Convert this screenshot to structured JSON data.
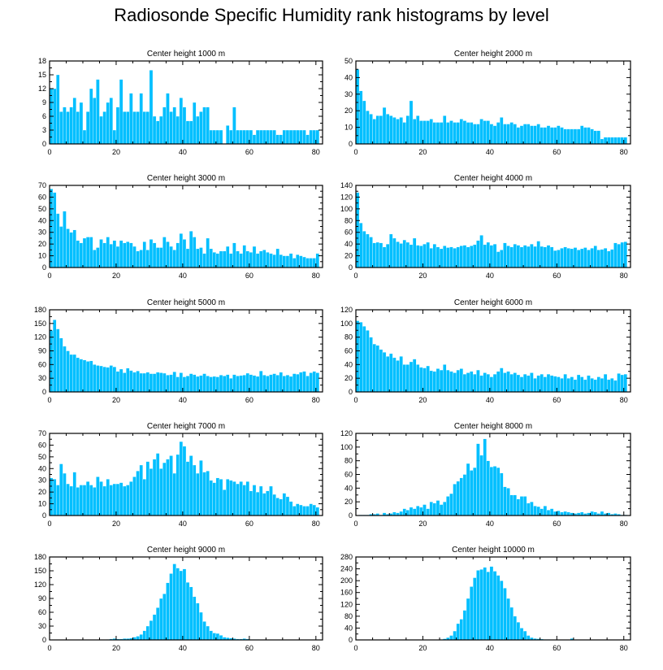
{
  "title": "Radiosonde Specific Humidity rank histograms by level",
  "colors": {
    "bar": "#00bfff",
    "bar_edge": "#ffffff",
    "axis": "#000000"
  },
  "chart_data": [
    {
      "type": "bar",
      "title": "Center height 1000 m",
      "xlim": [
        0,
        82
      ],
      "ylim": [
        0,
        18
      ],
      "yticks": [
        0,
        3,
        6,
        9,
        12,
        15,
        18
      ],
      "xticks": [
        0,
        20,
        40,
        60,
        80
      ],
      "values": [
        12,
        12,
        15,
        7,
        8,
        7,
        8,
        10,
        7,
        9,
        3,
        7,
        12,
        10,
        14,
        6,
        7,
        9,
        10,
        3,
        8,
        14,
        7,
        7,
        11,
        7,
        7,
        11,
        7,
        7,
        16,
        6,
        5,
        6,
        8,
        11,
        7,
        8,
        6,
        10,
        8,
        5,
        5,
        9,
        6,
        7,
        8,
        8,
        3,
        3,
        3,
        3,
        0,
        4,
        3,
        8,
        3,
        3,
        3,
        3,
        3,
        2,
        3,
        3,
        3,
        3,
        3,
        3,
        2,
        2,
        3,
        3,
        3,
        3,
        3,
        3,
        3,
        2,
        3,
        3,
        3
      ]
    },
    {
      "type": "bar",
      "title": "Center height 2000 m",
      "xlim": [
        0,
        82
      ],
      "ylim": [
        0,
        50
      ],
      "yticks": [
        0,
        10,
        20,
        30,
        40,
        50
      ],
      "xticks": [
        0,
        20,
        40,
        60,
        80
      ],
      "values": [
        45,
        32,
        26,
        20,
        18,
        15,
        17,
        17,
        22,
        18,
        17,
        16,
        15,
        16,
        13,
        17,
        26,
        15,
        17,
        14,
        14,
        14,
        15,
        13,
        13,
        13,
        17,
        13,
        14,
        13,
        13,
        15,
        14,
        13,
        13,
        12,
        12,
        15,
        14,
        14,
        12,
        11,
        13,
        16,
        12,
        12,
        13,
        12,
        10,
        11,
        12,
        12,
        11,
        11,
        12,
        10,
        10,
        11,
        10,
        10,
        11,
        10,
        9,
        9,
        9,
        9,
        9,
        11,
        10,
        10,
        9,
        8,
        8,
        3,
        4,
        4,
        4,
        4,
        4,
        4,
        4
      ]
    },
    {
      "type": "bar",
      "title": "Center height 3000 m",
      "xlim": [
        0,
        82
      ],
      "ylim": [
        0,
        70
      ],
      "yticks": [
        0,
        10,
        20,
        30,
        40,
        50,
        60,
        70
      ],
      "xticks": [
        0,
        20,
        40,
        60,
        80
      ],
      "values": [
        67,
        64,
        46,
        35,
        48,
        33,
        30,
        32,
        23,
        21,
        25,
        26,
        26,
        15,
        17,
        24,
        21,
        26,
        20,
        23,
        18,
        23,
        21,
        22,
        21,
        18,
        14,
        15,
        22,
        15,
        24,
        21,
        17,
        17,
        26,
        22,
        18,
        15,
        21,
        29,
        24,
        16,
        31,
        26,
        16,
        17,
        12,
        25,
        16,
        13,
        12,
        14,
        14,
        18,
        12,
        21,
        14,
        12,
        19,
        14,
        13,
        18,
        12,
        14,
        15,
        13,
        12,
        11,
        16,
        11,
        10,
        10,
        12,
        8,
        11,
        10,
        9,
        8,
        8,
        8,
        12
      ]
    },
    {
      "type": "bar",
      "title": "Center height 4000 m",
      "xlim": [
        0,
        82
      ],
      "ylim": [
        0,
        140
      ],
      "yticks": [
        0,
        20,
        40,
        60,
        80,
        100,
        120,
        140
      ],
      "xticks": [
        0,
        20,
        40,
        60,
        80
      ],
      "values": [
        128,
        76,
        62,
        57,
        52,
        42,
        43,
        42,
        35,
        40,
        57,
        50,
        44,
        41,
        47,
        43,
        39,
        50,
        38,
        37,
        40,
        43,
        33,
        40,
        35,
        32,
        37,
        34,
        35,
        33,
        35,
        37,
        38,
        35,
        37,
        39,
        46,
        55,
        39,
        43,
        38,
        40,
        27,
        30,
        42,
        37,
        35,
        40,
        38,
        35,
        38,
        36,
        40,
        36,
        45,
        36,
        35,
        38,
        35,
        29,
        30,
        33,
        35,
        33,
        32,
        34,
        30,
        32,
        34,
        30,
        33,
        37,
        30,
        31,
        33,
        28,
        31,
        42,
        40,
        43,
        44
      ]
    },
    {
      "type": "bar",
      "title": "Center height 5000 m",
      "xlim": [
        0,
        82
      ],
      "ylim": [
        0,
        180
      ],
      "yticks": [
        0,
        30,
        60,
        90,
        120,
        150,
        180
      ],
      "xticks": [
        0,
        20,
        40,
        60,
        80
      ],
      "values": [
        135,
        158,
        138,
        118,
        100,
        90,
        82,
        82,
        75,
        72,
        70,
        67,
        68,
        60,
        58,
        57,
        55,
        54,
        58,
        55,
        45,
        50,
        42,
        52,
        47,
        43,
        46,
        41,
        41,
        43,
        40,
        40,
        43,
        42,
        41,
        37,
        38,
        44,
        33,
        42,
        33,
        35,
        40,
        38,
        34,
        36,
        40,
        35,
        33,
        34,
        33,
        37,
        35,
        38,
        30,
        38,
        35,
        36,
        37,
        41,
        38,
        36,
        34,
        46,
        37,
        35,
        38,
        40,
        37,
        43,
        35,
        37,
        34,
        40,
        39,
        43,
        45,
        35,
        42,
        45,
        42
      ]
    },
    {
      "type": "bar",
      "title": "Center height 6000 m",
      "xlim": [
        0,
        82
      ],
      "ylim": [
        0,
        120
      ],
      "yticks": [
        0,
        20,
        40,
        60,
        80,
        100,
        120
      ],
      "xticks": [
        0,
        20,
        40,
        60,
        80
      ],
      "values": [
        104,
        102,
        96,
        90,
        80,
        70,
        68,
        62,
        58,
        52,
        56,
        50,
        46,
        52,
        40,
        40,
        44,
        48,
        40,
        36,
        35,
        38,
        31,
        30,
        34,
        32,
        40,
        32,
        30,
        28,
        32,
        34,
        26,
        28,
        30,
        26,
        32,
        24,
        28,
        26,
        22,
        26,
        30,
        35,
        28,
        30,
        26,
        28,
        25,
        22,
        26,
        24,
        28,
        20,
        24,
        26,
        22,
        26,
        24,
        23,
        22,
        20,
        26,
        20,
        22,
        18,
        25,
        22,
        18,
        24,
        20,
        18,
        22,
        20,
        26,
        18,
        20,
        17,
        27,
        25,
        26
      ]
    },
    {
      "type": "bar",
      "title": "Center height 7000 m",
      "xlim": [
        0,
        82
      ],
      "ylim": [
        0,
        70
      ],
      "yticks": [
        0,
        10,
        20,
        30,
        40,
        50,
        60,
        70
      ],
      "xticks": [
        0,
        20,
        40,
        60,
        80
      ],
      "values": [
        32,
        31,
        26,
        44,
        36,
        27,
        25,
        37,
        24,
        26,
        26,
        29,
        26,
        24,
        33,
        29,
        25,
        31,
        26,
        27,
        27,
        28,
        25,
        26,
        29,
        33,
        38,
        43,
        31,
        46,
        40,
        48,
        53,
        40,
        45,
        48,
        51,
        36,
        52,
        63,
        59,
        46,
        51,
        43,
        36,
        47,
        37,
        38,
        30,
        28,
        32,
        31,
        22,
        31,
        30,
        29,
        27,
        29,
        26,
        29,
        21,
        26,
        20,
        25,
        19,
        21,
        25,
        18,
        15,
        14,
        19,
        16,
        12,
        8,
        10,
        9,
        8,
        8,
        10,
        9,
        7
      ]
    },
    {
      "type": "bar",
      "title": "Center height 8000 m",
      "xlim": [
        0,
        82
      ],
      "ylim": [
        0,
        120
      ],
      "yticks": [
        0,
        20,
        40,
        60,
        80,
        100,
        120
      ],
      "xticks": [
        0,
        20,
        40,
        60,
        80
      ],
      "values": [
        0,
        1,
        1,
        1,
        2,
        2,
        3,
        1,
        4,
        2,
        3,
        5,
        4,
        6,
        10,
        8,
        12,
        10,
        14,
        12,
        16,
        10,
        20,
        18,
        22,
        16,
        20,
        28,
        32,
        46,
        50,
        55,
        60,
        76,
        66,
        70,
        105,
        88,
        112,
        80,
        71,
        72,
        70,
        62,
        42,
        40,
        30,
        30,
        24,
        28,
        28,
        18,
        20,
        14,
        13,
        10,
        14,
        8,
        10,
        6,
        7,
        5,
        6,
        5,
        4,
        3,
        4,
        5,
        3,
        4,
        6,
        5,
        3,
        6,
        3,
        4,
        2,
        3,
        2,
        1,
        1
      ]
    },
    {
      "type": "bar",
      "title": "Center height 9000 m",
      "xlim": [
        0,
        82
      ],
      "ylim": [
        0,
        180
      ],
      "yticks": [
        0,
        30,
        60,
        90,
        120,
        150,
        180
      ],
      "xticks": [
        0,
        20,
        40,
        60,
        80
      ],
      "values": [
        0,
        0,
        0,
        0,
        0,
        0,
        0,
        0,
        0,
        0,
        0,
        0,
        0,
        0,
        0,
        0,
        0,
        1,
        2,
        3,
        2,
        2,
        3,
        3,
        4,
        6,
        8,
        12,
        20,
        30,
        42,
        55,
        70,
        90,
        100,
        124,
        144,
        165,
        156,
        150,
        154,
        125,
        115,
        94,
        80,
        60,
        40,
        30,
        20,
        15,
        14,
        10,
        6,
        5,
        4,
        3,
        2,
        2,
        3,
        2,
        1,
        1,
        1,
        0,
        0,
        0,
        0,
        0,
        0,
        0,
        0,
        0,
        0,
        0,
        0,
        0,
        0,
        0,
        0,
        0,
        0
      ]
    },
    {
      "type": "bar",
      "title": "Center height 10000 m",
      "xlim": [
        0,
        82
      ],
      "ylim": [
        0,
        280
      ],
      "yticks": [
        0,
        40,
        80,
        120,
        160,
        200,
        240,
        280
      ],
      "xticks": [
        0,
        20,
        40,
        60,
        80
      ],
      "values": [
        0,
        0,
        0,
        0,
        0,
        0,
        0,
        0,
        0,
        0,
        0,
        0,
        0,
        0,
        0,
        0,
        0,
        0,
        0,
        0,
        0,
        0,
        0,
        0,
        1,
        2,
        4,
        8,
        15,
        30,
        55,
        70,
        100,
        140,
        180,
        210,
        235,
        238,
        245,
        230,
        248,
        232,
        218,
        200,
        175,
        140,
        110,
        80,
        60,
        40,
        30,
        15,
        8,
        5,
        4,
        3,
        2,
        2,
        1,
        1,
        1,
        1,
        0,
        0,
        5,
        0,
        0,
        0,
        0,
        0,
        0,
        0,
        0,
        0,
        0,
        0,
        0,
        0,
        0,
        0,
        0
      ]
    }
  ]
}
